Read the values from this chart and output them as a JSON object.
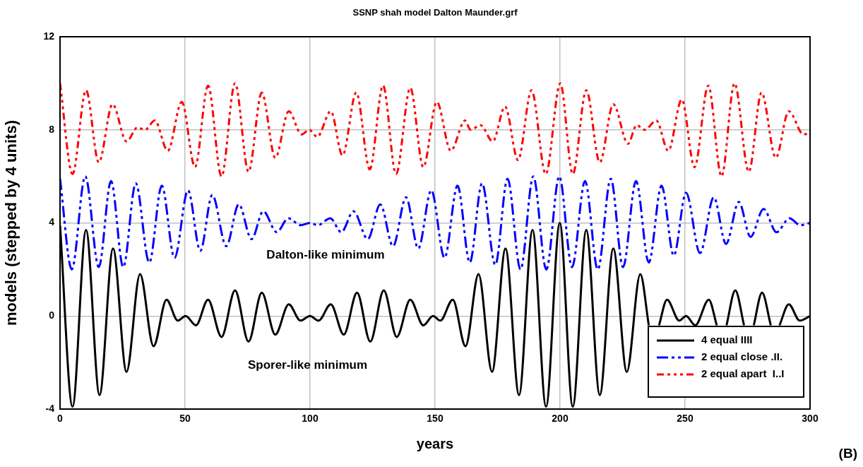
{
  "chart_data": {
    "type": "line",
    "title": "SSNP shah model Dalton Maunder.grf",
    "xlabel": "years",
    "ylabel": "models (stepped by 4 units)",
    "xlim": [
      0,
      300
    ],
    "xticks": [
      0,
      50,
      100,
      150,
      200,
      250,
      300
    ],
    "ylim": [
      -4,
      12
    ],
    "yticks": [
      -4,
      0,
      4,
      8,
      12
    ],
    "grid": true,
    "legend": "bottom right",
    "marker": "none",
    "series": [
      {
        "name": "4 equal IIII",
        "color": "#000000",
        "line_style": "solid",
        "x": [
          0,
          5.0,
          10.4,
          15.8,
          21.2,
          26.6,
          32.0,
          37.4,
          42.6,
          47.1,
          50.2,
          54.4,
          59.2,
          64.6,
          70.0,
          75.4,
          80.7,
          86.1,
          91.5,
          96.2,
          100,
          103.4,
          108.3,
          113.5,
          118.8,
          124.1,
          129.5,
          134.7,
          140.1,
          145.3,
          149.2,
          152.1,
          157.1,
          162.2,
          167.4,
          172.8,
          178.2,
          183.6,
          189.0,
          194.4,
          199.9,
          205.1,
          210.5,
          215.9,
          221.3,
          226.7,
          232.1,
          235.5,
          237.5,
          239.6,
          242.8,
          247.7,
          250.4,
          254.1,
          259.5,
          262.7,
          264.6,
          266.6,
          270.1,
          273.6,
          275.5,
          277.5,
          280.8,
          284.3,
          286.0,
          287.8,
          291.5,
          295.9,
          300
        ],
        "values": [
          3.9,
          -3.9,
          3.7,
          -3.4,
          2.9,
          -2.4,
          1.8,
          -1.3,
          0.7,
          -0.2,
          0.0,
          -0.4,
          0.7,
          -0.9,
          1.1,
          -1.1,
          1.0,
          -0.8,
          0.5,
          -0.2,
          0.0,
          -0.2,
          0.5,
          -0.8,
          1.0,
          -1.1,
          1.1,
          -0.9,
          0.7,
          -0.4,
          0.0,
          -0.2,
          0.7,
          -1.3,
          1.8,
          -2.4,
          2.9,
          -3.4,
          3.7,
          -3.9,
          4.0,
          -3.9,
          3.7,
          -3.4,
          2.9,
          -2.4,
          1.8,
          -0.4,
          null,
          -0.4,
          0.7,
          -0.2,
          0.0,
          -0.4,
          0.7,
          -0.4,
          null,
          -0.4,
          1.1,
          -0.4,
          null,
          -0.4,
          1.0,
          -0.4,
          null,
          -0.4,
          0.5,
          -0.2,
          0.0
        ]
      },
      {
        "name": "2 equal close .II.",
        "color": "#0000ff",
        "line_style": "dashed",
        "x": [
          0,
          4.7,
          10.1,
          15.5,
          20.4,
          25.3,
          30.3,
          35.7,
          40.7,
          45.8,
          51.2,
          56.1,
          60.9,
          66.5,
          71.5,
          76.6,
          81.3,
          86.7,
          91.3,
          96.3,
          100,
          103.1,
          108.1,
          112.5,
          117.4,
          123.1,
          128.1,
          133.2,
          138.4,
          143.3,
          148.5,
          153.8,
          159.0,
          163.9,
          168.8,
          174.1,
          179.0,
          184.2,
          189.3,
          194.5,
          199.7,
          204.8,
          210.0,
          215.1,
          220.3,
          225.2,
          230.4,
          235.5,
          240.6,
          245.5,
          250.4,
          256.0,
          261.5,
          266.4,
          271.5,
          276.2,
          281.4,
          286.6,
          291.8,
          296.1,
          300
        ],
        "values": [
          5.9,
          2.0,
          6.0,
          2.1,
          5.8,
          2.1,
          5.7,
          2.3,
          5.6,
          2.5,
          5.4,
          2.8,
          5.2,
          3.0,
          4.8,
          3.3,
          4.5,
          3.6,
          4.2,
          3.9,
          4.0,
          3.9,
          4.2,
          3.6,
          4.5,
          3.3,
          4.8,
          3.0,
          5.1,
          2.9,
          5.4,
          2.5,
          5.6,
          2.3,
          5.7,
          2.2,
          5.9,
          2.0,
          6.0,
          2.0,
          6.0,
          2.1,
          5.8,
          2.0,
          5.9,
          2.1,
          5.8,
          2.3,
          5.6,
          2.6,
          5.3,
          2.7,
          5.1,
          3.1,
          4.9,
          3.4,
          4.6,
          3.6,
          4.2,
          3.9,
          4.0
        ]
      },
      {
        "name": "2 equal apart  I..I",
        "color": "#ff0000",
        "line_style": "dotted",
        "x": [
          0,
          5.0,
          10.4,
          15.5,
          21.0,
          26.6,
          31.0,
          34.0,
          37.9,
          43.1,
          48.7,
          54.0,
          59.2,
          64.6,
          70.0,
          75.4,
          80.7,
          86.1,
          91.5,
          96.6,
          99.6,
          102.9,
          108.3,
          113.0,
          118.5,
          123.9,
          129.2,
          134.4,
          140.1,
          145.3,
          150.7,
          156.3,
          162.0,
          164.2,
          168.2,
          173.1,
          178.0,
          183.2,
          188.6,
          194.3,
          200.1,
          205.1,
          210.5,
          215.9,
          221.3,
          227.2,
          230.6,
          233.9,
          238.5,
          243.3,
          248.7,
          253.8,
          259.3,
          264.6,
          269.8,
          275.5,
          280.6,
          286.3,
          291.5,
          297.4,
          300
        ],
        "values": [
          10.0,
          6.1,
          9.7,
          6.6,
          9.1,
          7.5,
          8.1,
          8.0,
          8.4,
          7.1,
          9.2,
          6.4,
          9.9,
          6.0,
          10.0,
          6.2,
          9.6,
          6.8,
          8.8,
          7.8,
          8.0,
          7.7,
          8.8,
          6.9,
          9.6,
          6.3,
          9.9,
          6.1,
          9.8,
          6.4,
          9.2,
          7.1,
          8.4,
          8.0,
          8.2,
          7.5,
          9.0,
          6.7,
          9.7,
          6.1,
          10.0,
          6.1,
          9.7,
          6.6,
          9.1,
          7.4,
          8.2,
          8.0,
          8.4,
          7.1,
          9.3,
          6.4,
          9.9,
          6.0,
          10.0,
          6.2,
          9.6,
          6.8,
          8.8,
          7.8,
          7.9
        ]
      }
    ],
    "annotations": [
      "Dalton-like minimum",
      "Sporer-like minimum",
      "(B)"
    ]
  }
}
